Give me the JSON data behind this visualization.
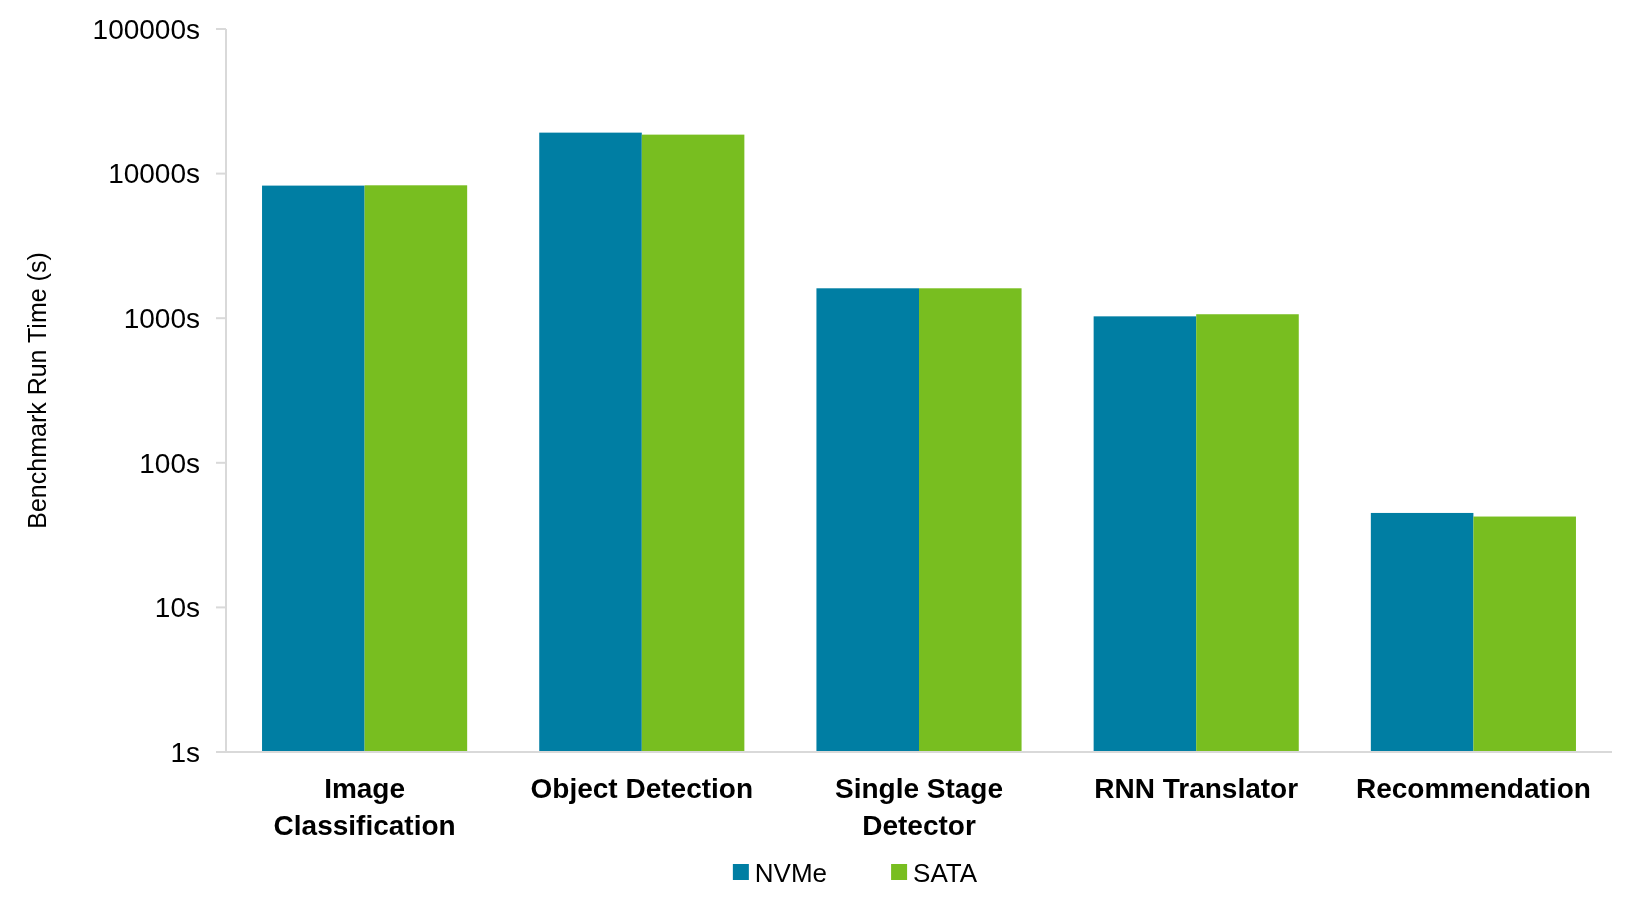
{
  "chart_data": {
    "type": "bar",
    "ylabel": "Benchmark Run Time (s)",
    "log": true,
    "categories": [
      "Image Classification",
      "Object Detection",
      "Single Stage Detector",
      "RNN Translator",
      "Recommendation"
    ],
    "series": [
      {
        "name": "NVMe",
        "color": "#007ea3",
        "values": [
          8260,
          19200,
          1610,
          1030,
          45
        ]
      },
      {
        "name": "SATA",
        "color": "#78be20",
        "values": [
          8300,
          18600,
          1610,
          1065,
          42.5
        ]
      }
    ],
    "ylim": [
      1,
      100000
    ],
    "yticks": [
      {
        "value": 1,
        "label": "1s"
      },
      {
        "value": 10,
        "label": "10s"
      },
      {
        "value": 100,
        "label": "100s"
      },
      {
        "value": 1000,
        "label": "1000s"
      },
      {
        "value": 10000,
        "label": "10000s"
      },
      {
        "value": 100000,
        "label": "100000s"
      }
    ],
    "grid": false,
    "legend": "bottom"
  }
}
